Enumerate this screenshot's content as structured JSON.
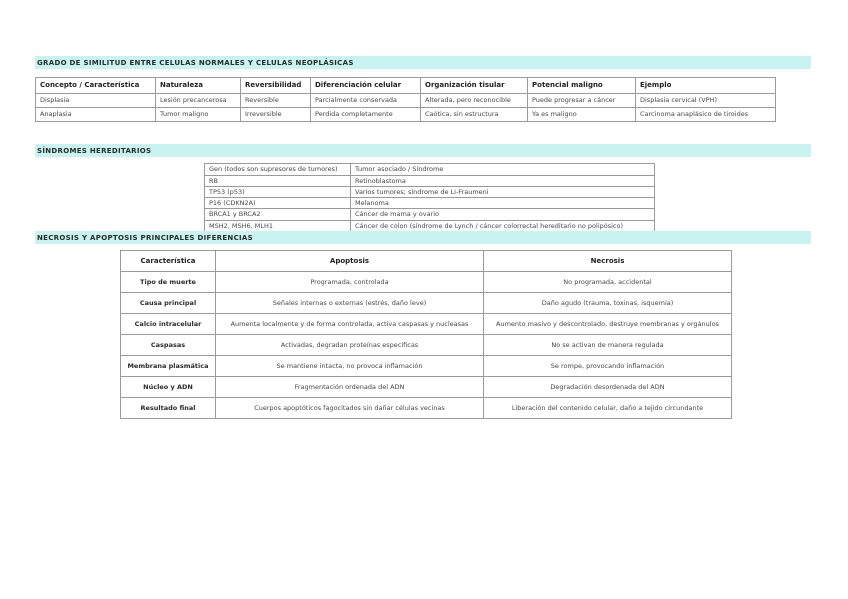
{
  "page": {
    "background": "#ffffff",
    "highlight_color": "#c8f3f0",
    "border_color": "#9b9b9b"
  },
  "sections": [
    {
      "title": "GRADO DE SIMILITUD ENTRE CELULAS NORMALES Y CELULAS NEOPLÁSICAS",
      "table": {
        "headers": [
          "Concepto / Característica",
          "Naturaleza",
          "Reversibilidad",
          "Diferenciación celular",
          "Organización tisular",
          "Potencial maligno",
          "Ejemplo"
        ],
        "rows": [
          [
            "Displasia",
            "Lesión precancerosa",
            "Reversible",
            "Parcialmente conservada",
            "Alterada, pero reconocible",
            "Puede progresar a cáncer",
            "Displasia cervical (VPH)"
          ],
          [
            "Anaplasia",
            "Tumor maligno",
            "Irreversible",
            "Perdida completamente",
            "Caótica, sin estructura",
            "Ya es maligno",
            "Carcinoma anaplásico de tiroides"
          ]
        ]
      }
    },
    {
      "title": "SÍNDROMES HEREDITARIOS",
      "table": {
        "headers": [
          "Gen (todos son supresores de tumores)",
          "Tumor asociado / Síndrome"
        ],
        "rows": [
          [
            "RB",
            "Retinoblastoma"
          ],
          [
            "TP53 (p53)",
            "Varios tumores; síndrome de Li-Fraumeni"
          ],
          [
            "P16 (CDKN2A)",
            "Melanoma"
          ],
          [
            "BRCA1 y BRCA2",
            "Cáncer de mama y ovario"
          ],
          [
            "MSH2, MSH6, MLH1",
            "Cáncer de colon (síndrome de Lynch / cáncer colorrectal hereditario no polipósico)"
          ]
        ]
      }
    },
    {
      "title": "NECROSIS Y APOPTOSIS PRINCIPALES DIFERENCIAS",
      "table": {
        "headers": [
          "Característica",
          "Apoptosis",
          "Necrosis"
        ],
        "rows": [
          [
            "Tipo de muerte",
            "Programada, controlada",
            "No programada, accidental"
          ],
          [
            "Causa principal",
            "Señales internas o externas (estrés, daño leve)",
            "Daño agudo (trauma, toxinas, isquemia)"
          ],
          [
            "Calcio intracelular",
            "Aumenta localmente y de forma controlada, activa caspasas y nucleasas",
            "Aumento masivo y descontrolado, destruye membranas y orgánulos"
          ],
          [
            "Caspasas",
            "Activadas, degradan proteínas específicas",
            "No se activan de manera regulada"
          ],
          [
            "Membrana plasmática",
            "Se mantiene intacta, no provoca inflamación",
            "Se rompe, provocando inflamación"
          ],
          [
            "Núcleo y ADN",
            "Fragmentación ordenada del ADN",
            "Degradación desordenada del ADN"
          ],
          [
            "Resultado final",
            "Cuerpos apoptóticos fagocitados sin dañar células vecinas",
            "Liberación del contenido celular, daño a tejido circundante"
          ]
        ]
      }
    }
  ]
}
